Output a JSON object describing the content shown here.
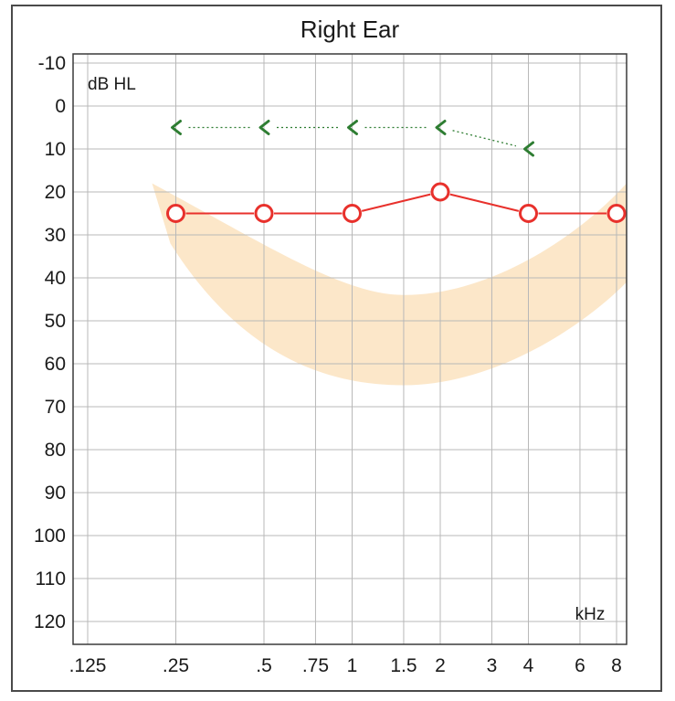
{
  "chart_data": {
    "type": "line",
    "title": "Right Ear",
    "ylabel": "dB HL",
    "xlabel": "kHz",
    "x_tick_labels": [
      ".125",
      ".25",
      ".5",
      ".75",
      "1",
      "1.5",
      "2",
      "3",
      "4",
      "6",
      "8"
    ],
    "x_tick_values": [
      0.125,
      0.25,
      0.5,
      0.75,
      1,
      1.5,
      2,
      3,
      4,
      6,
      8
    ],
    "x_scale": "octave",
    "y_tick_labels": [
      "-10",
      "0",
      "10",
      "20",
      "30",
      "40",
      "50",
      "60",
      "70",
      "80",
      "90",
      "100",
      "110",
      "120"
    ],
    "y_tick_values": [
      -10,
      0,
      10,
      20,
      30,
      40,
      50,
      60,
      70,
      80,
      90,
      100,
      110,
      120
    ],
    "ylim": [
      -10,
      120
    ],
    "y_inverted": true,
    "grid": true,
    "series": [
      {
        "marker": "circle",
        "color": "#e8312c",
        "line_style": "solid",
        "x": [
          0.25,
          0.5,
          1,
          2,
          4,
          8
        ],
        "values": [
          25,
          25,
          25,
          20,
          25,
          25
        ]
      },
      {
        "marker": "bracket-left",
        "color": "#2e7d32",
        "line_style": "dotted",
        "x": [
          0.25,
          0.5,
          1,
          2,
          4
        ],
        "values": [
          5,
          5,
          5,
          5,
          10
        ]
      }
    ],
    "speech_banana_color": "#fbe3c0"
  }
}
